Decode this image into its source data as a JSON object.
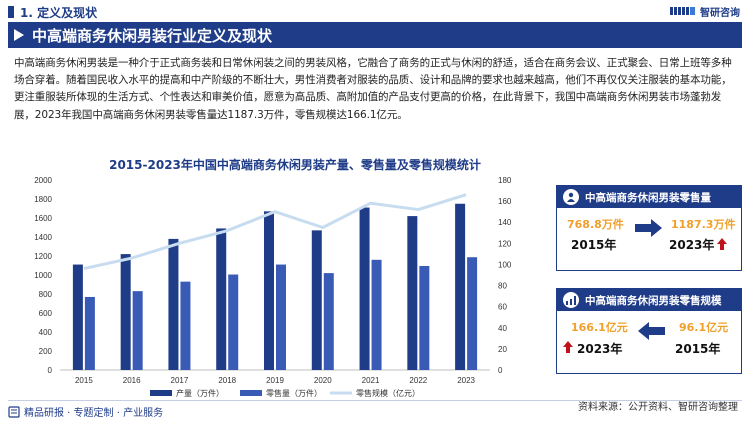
{
  "header": {
    "section_title": "1. 定义及现状",
    "brand_name": "智研咨询"
  },
  "banner": {
    "title": "中高端商务休闲男装行业定义及现状"
  },
  "intro": {
    "text": "中高端商务休闲男装是一种介于正式商务装和日常休闲装之间的男装风格，它融合了商务的正式与休闲的舒适，适合在商务会议、正式聚会、日常上班等多种场合穿着。随着国民收入水平的提高和中产阶级的不断壮大，男性消费者对服装的品质、设计和品牌的要求也越来越高，他们不再仅仅关注服装的基本功能，更注重服装所体现的生活方式、个性表达和审美价值，愿意为高品质、高附加值的产品支付更高的价格，在此背景下，我国中高端商务休闲男装市场蓬勃发展，2023年我国中高端商务休闲男装零售量达1187.3万件，零售规模达166.1亿元。"
  },
  "chart_data": {
    "type": "bar",
    "title": "2015-2023年中国中高端商务休闲男装产量、零售量及零售规模统计",
    "categories": [
      "2015",
      "2016",
      "2017",
      "2018",
      "2019",
      "2020",
      "2021",
      "2022",
      "2023"
    ],
    "series": [
      {
        "name": "产量（万件）",
        "type": "bar",
        "axis": "left",
        "color": "#1f3c88",
        "values": [
          1110,
          1220,
          1380,
          1490,
          1670,
          1470,
          1710,
          1620,
          1750
        ]
      },
      {
        "name": "零售量（万件）",
        "type": "bar",
        "axis": "left",
        "color": "#3a5bb5",
        "values": [
          768.8,
          830,
          930,
          1005,
          1110,
          1020,
          1160,
          1095,
          1187.3
        ]
      },
      {
        "name": "零售规模（亿元）",
        "type": "line",
        "axis": "right",
        "color": "#c8dcf0",
        "values": [
          96.1,
          106,
          120,
          132,
          150,
          135,
          158,
          152,
          166.1
        ]
      }
    ],
    "ylim_left": [
      0,
      2000
    ],
    "yticks_left": [
      0,
      200,
      400,
      600,
      800,
      1000,
      1200,
      1400,
      1600,
      1800,
      2000
    ],
    "ylim_right": [
      0,
      180
    ],
    "yticks_right": [
      0,
      20,
      40,
      60,
      80,
      100,
      120,
      140,
      160,
      180
    ],
    "legend_position": "bottom",
    "grid": false
  },
  "card_sales_volume": {
    "title": "中高端商务休闲男装零售量",
    "from_value": "768.8万件",
    "from_year": "2015年",
    "to_value": "1187.3万件",
    "to_year": "2023年"
  },
  "card_sales_scale": {
    "title": "中高端商务休闲男装零售规模",
    "to_value": "166.1亿元",
    "to_year": "2023年",
    "from_value": "96.1亿元",
    "from_year": "2015年"
  },
  "source": "资料来源：公开资料、智研咨询整理",
  "footer": "精品研报 · 专题定制 · 产业服务",
  "colors": {
    "primary": "#1f3c88",
    "accent": "#f0a02a",
    "up_arrow": "#c0141c"
  }
}
